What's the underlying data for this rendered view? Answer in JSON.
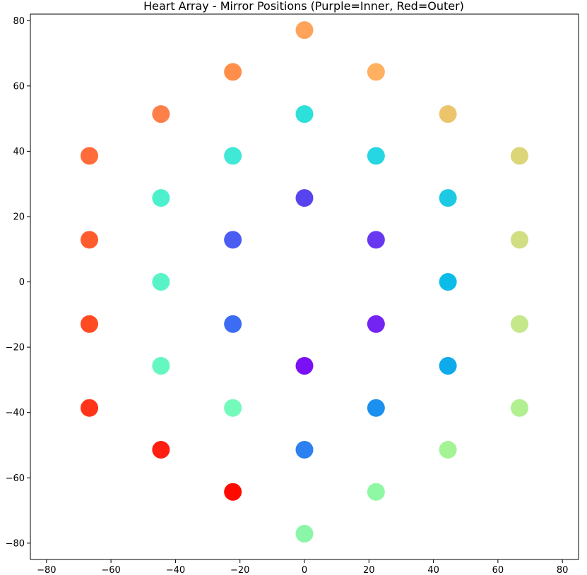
{
  "chart_data": {
    "type": "scatter",
    "title": "Heart Array - Mirror Positions (Purple=Inner, Red=Outer)",
    "xlabel": "",
    "ylabel": "",
    "xlim": [
      -85,
      85
    ],
    "ylim": [
      -85,
      82
    ],
    "x_ticks": [
      -80,
      -60,
      -40,
      -20,
      0,
      20,
      40,
      60,
      80
    ],
    "y_ticks": [
      -80,
      -60,
      -40,
      -20,
      0,
      20,
      40,
      60,
      80
    ],
    "x_tick_labels": [
      "−80",
      "−60",
      "−40",
      "−20",
      "0",
      "20",
      "40",
      "60",
      "80"
    ],
    "y_tick_labels": [
      "−80",
      "−60",
      "−40",
      "−20",
      "0",
      "20",
      "40",
      "60",
      "80"
    ],
    "grid": false,
    "legend": false,
    "points": [
      {
        "x": 0,
        "y": 77.1,
        "color": "#ffa35a"
      },
      {
        "x": -22.2,
        "y": 64.3,
        "color": "#ff8e4a"
      },
      {
        "x": 22.2,
        "y": 64.3,
        "color": "#ffb060"
      },
      {
        "x": -44.5,
        "y": 51.4,
        "color": "#ff7f48"
      },
      {
        "x": 0,
        "y": 51.4,
        "color": "#2de0da"
      },
      {
        "x": 44.5,
        "y": 51.4,
        "color": "#ecc46c"
      },
      {
        "x": -66.7,
        "y": 38.6,
        "color": "#ff6c3a"
      },
      {
        "x": -22.2,
        "y": 38.6,
        "color": "#40e8d6"
      },
      {
        "x": 22.2,
        "y": 38.6,
        "color": "#26d6e2"
      },
      {
        "x": 66.7,
        "y": 38.6,
        "color": "#dcd678"
      },
      {
        "x": -44.5,
        "y": 25.7,
        "color": "#4df0cc"
      },
      {
        "x": 0,
        "y": 25.7,
        "color": "#5844ee"
      },
      {
        "x": 44.5,
        "y": 25.7,
        "color": "#1ccae4"
      },
      {
        "x": -66.7,
        "y": 12.9,
        "color": "#ff5c2e"
      },
      {
        "x": -22.2,
        "y": 12.9,
        "color": "#4a5cf2"
      },
      {
        "x": 22.2,
        "y": 12.9,
        "color": "#6838f0"
      },
      {
        "x": 66.7,
        "y": 12.9,
        "color": "#d2de82"
      },
      {
        "x": -44.5,
        "y": 0,
        "color": "#58f4c8"
      },
      {
        "x": 44.5,
        "y": 0,
        "color": "#0cbce8"
      },
      {
        "x": -66.7,
        "y": -12.9,
        "color": "#ff4a22"
      },
      {
        "x": -22.2,
        "y": -12.9,
        "color": "#3c6cf4"
      },
      {
        "x": 22.2,
        "y": -12.9,
        "color": "#7424f2"
      },
      {
        "x": 66.7,
        "y": -12.9,
        "color": "#c4e88a"
      },
      {
        "x": -44.5,
        "y": -25.7,
        "color": "#64f8c0"
      },
      {
        "x": 0,
        "y": -25.7,
        "color": "#7a10f4"
      },
      {
        "x": 44.5,
        "y": -25.7,
        "color": "#0eaaec"
      },
      {
        "x": -66.7,
        "y": -38.6,
        "color": "#ff3418"
      },
      {
        "x": -22.2,
        "y": -38.6,
        "color": "#74faba"
      },
      {
        "x": 22.2,
        "y": -38.6,
        "color": "#1c90ee"
      },
      {
        "x": 66.7,
        "y": -38.6,
        "color": "#b0f090"
      },
      {
        "x": -44.5,
        "y": -51.4,
        "color": "#ff1e10"
      },
      {
        "x": 0,
        "y": -51.4,
        "color": "#2c80f0"
      },
      {
        "x": 44.5,
        "y": -51.4,
        "color": "#a4f496"
      },
      {
        "x": -22.2,
        "y": -64.3,
        "color": "#ff0a00"
      },
      {
        "x": 22.2,
        "y": -64.3,
        "color": "#8ef8a4"
      },
      {
        "x": 0,
        "y": -77.1,
        "color": "#8cf6a8"
      }
    ]
  }
}
